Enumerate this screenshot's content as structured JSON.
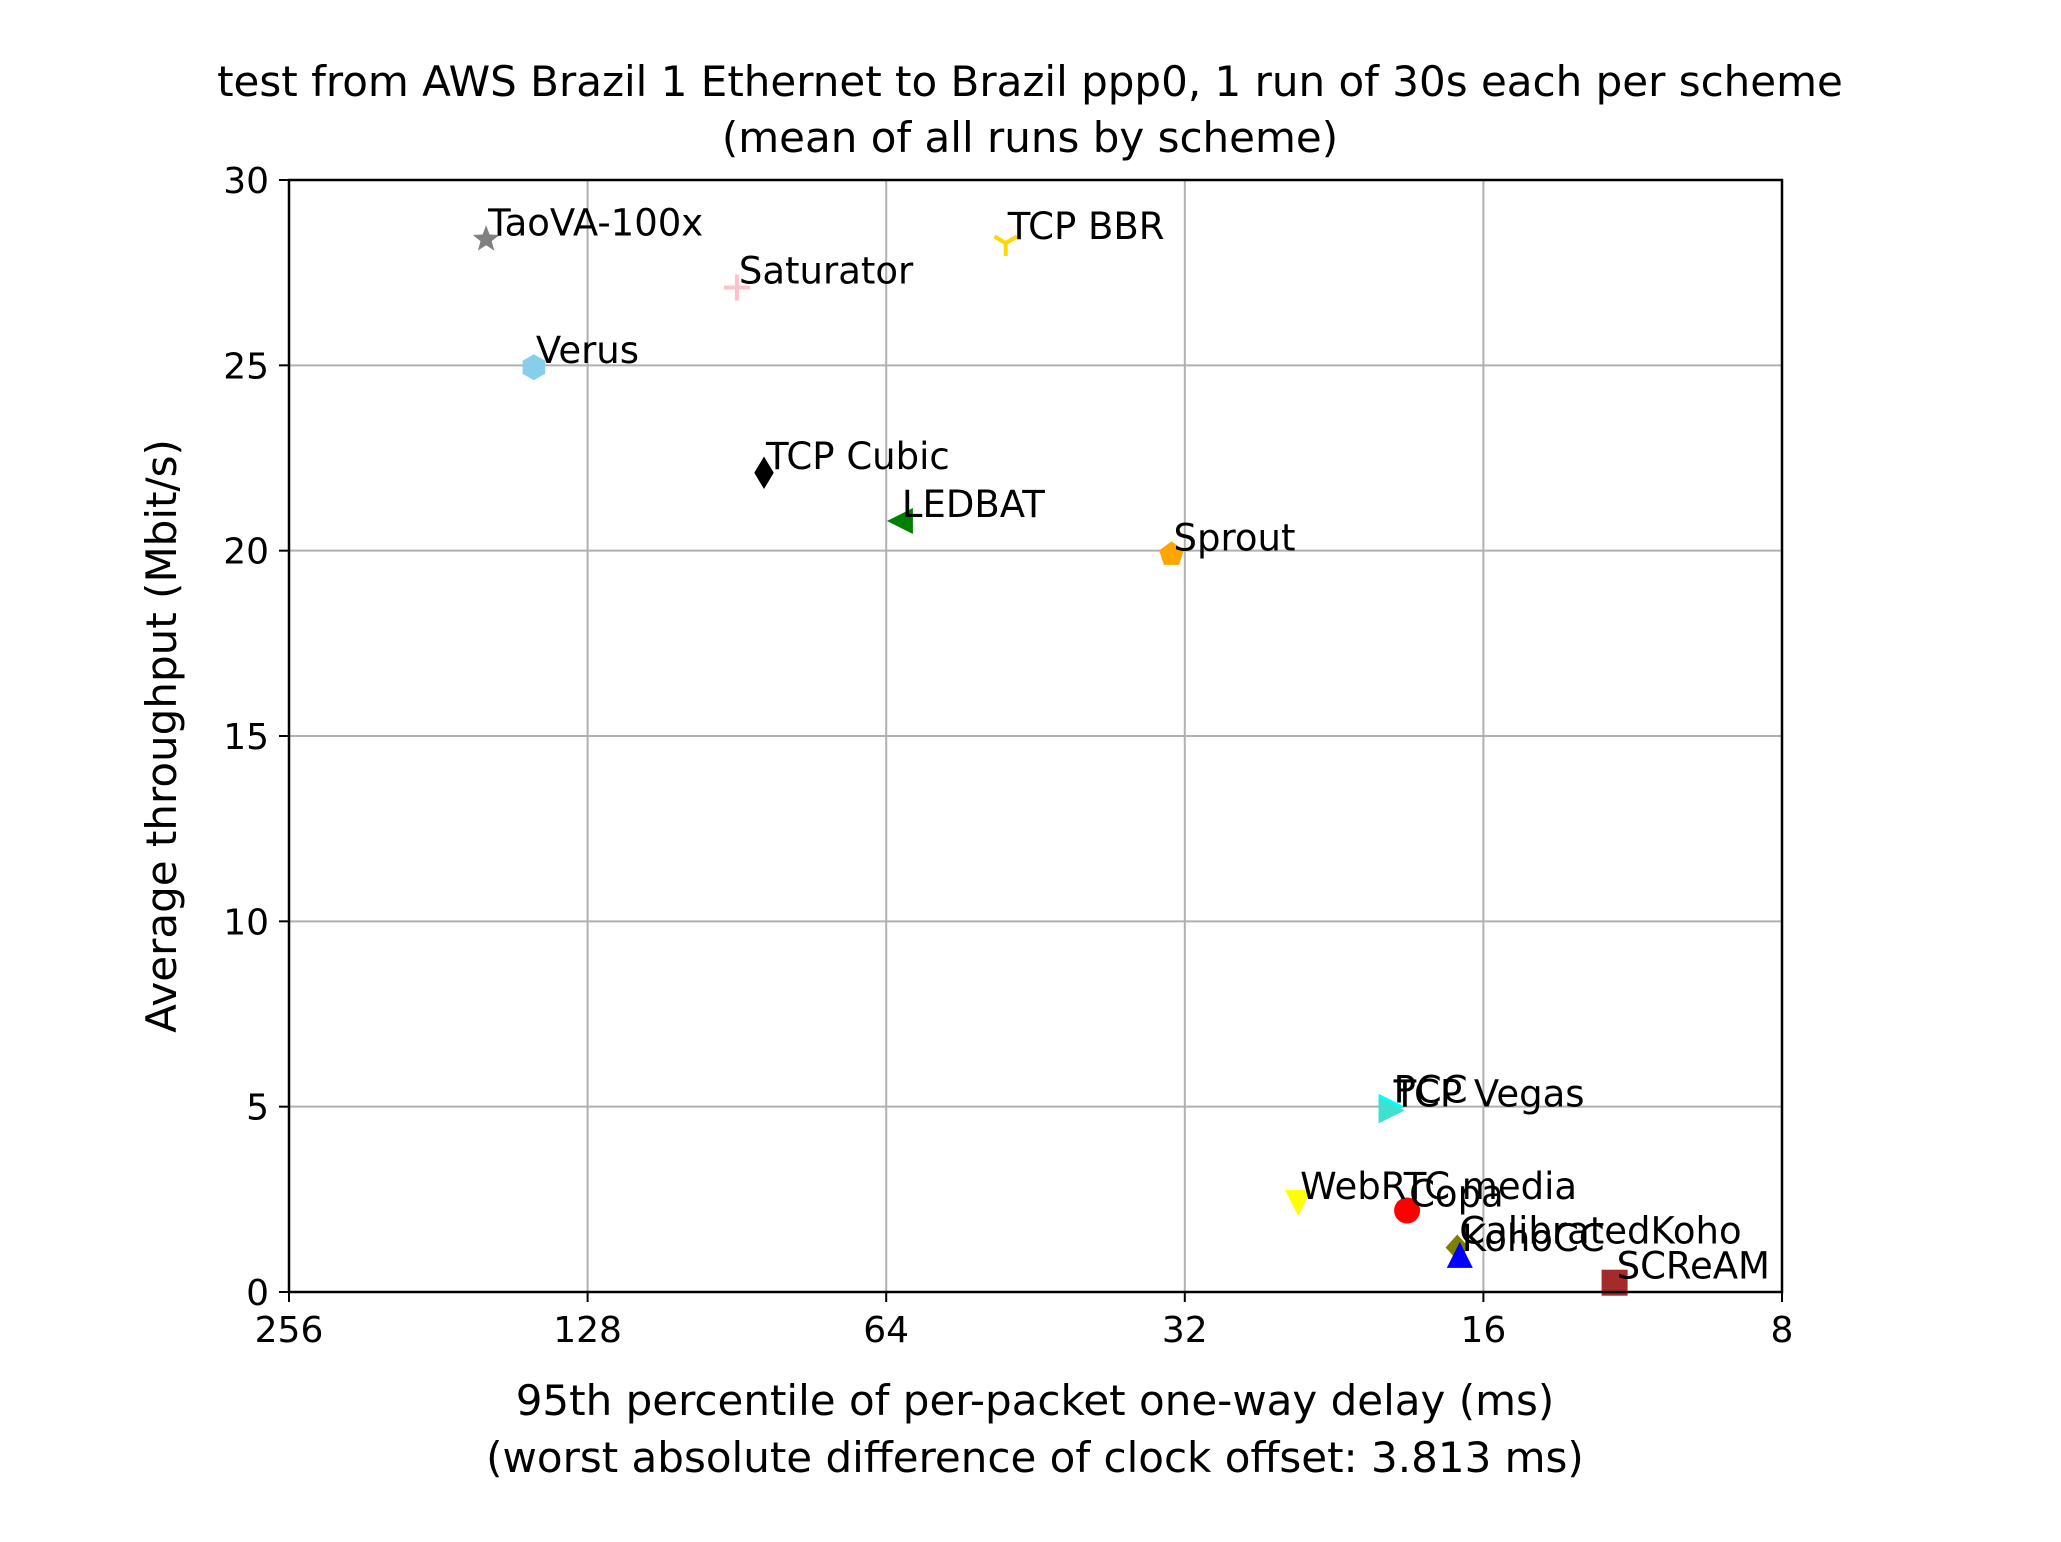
{
  "chart_data": {
    "type": "scatter",
    "title": "test from AWS Brazil 1 Ethernet to Brazil ppp0, 1 run of 30s each per scheme",
    "subtitle": "(mean of all runs by scheme)",
    "xlabel": "95th percentile of per-packet one-way delay (ms)",
    "xlabel_sub": "(worst absolute difference of clock offset: 3.813 ms)",
    "ylabel": "Average throughput (Mbit/s)",
    "x_scale": "log2",
    "x_inverted": true,
    "xlim": [
      256,
      8
    ],
    "ylim": [
      0,
      30
    ],
    "x_ticks": [
      {
        "value": 256,
        "label": "256"
      },
      {
        "value": 128,
        "label": "128"
      },
      {
        "value": 64,
        "label": "64"
      },
      {
        "value": 32,
        "label": "32"
      },
      {
        "value": 16,
        "label": "16"
      },
      {
        "value": 8,
        "label": "8"
      }
    ],
    "y_ticks": [
      {
        "value": 0,
        "label": "0"
      },
      {
        "value": 5,
        "label": "5"
      },
      {
        "value": 10,
        "label": "10"
      },
      {
        "value": 15,
        "label": "15"
      },
      {
        "value": 20,
        "label": "20"
      },
      {
        "value": 25,
        "label": "25"
      },
      {
        "value": 30,
        "label": "30"
      }
    ],
    "grid": true,
    "points": [
      {
        "name": "TaoVA-100x",
        "x": 162,
        "y": 28.4,
        "color": "#808080",
        "marker": "star"
      },
      {
        "name": "Saturator",
        "x": 90.5,
        "y": 27.1,
        "color": "#ffc0cb",
        "marker": "plus"
      },
      {
        "name": "TCP BBR",
        "x": 48.5,
        "y": 28.3,
        "color": "#ffd700",
        "marker": "tri_down"
      },
      {
        "name": "Verus",
        "x": 145,
        "y": 24.95,
        "color": "#87ceeb",
        "marker": "hexagon"
      },
      {
        "name": "TCP Cubic",
        "x": 85,
        "y": 22.1,
        "color": "#000000",
        "marker": "diamond"
      },
      {
        "name": "LEDBAT",
        "x": 62,
        "y": 20.8,
        "color": "#008000",
        "marker": "triangle_left"
      },
      {
        "name": "Sprout",
        "x": 33,
        "y": 19.9,
        "color": "#ffa500",
        "marker": "pentagon"
      },
      {
        "name": "PCC",
        "x": 19.8,
        "y": 5.0,
        "color": "#00ffff",
        "marker": "triangle_right"
      },
      {
        "name": "TCP Vegas",
        "x": 19.8,
        "y": 4.9,
        "color": "#40e0d0",
        "marker": "triangle_right"
      },
      {
        "name": "WebRTC media",
        "x": 24.6,
        "y": 2.4,
        "color": "#ffff00",
        "marker": "triangle_down"
      },
      {
        "name": "Copa",
        "x": 19.1,
        "y": 2.2,
        "color": "#ff0000",
        "marker": "circle"
      },
      {
        "name": "CalibratedKoho",
        "x": 17.0,
        "y": 1.2,
        "color": "#808000",
        "marker": "diamond_thin"
      },
      {
        "name": "KohoCC",
        "x": 16.9,
        "y": 1.0,
        "color": "#0000ff",
        "marker": "triangle_up"
      },
      {
        "name": "SCReAM",
        "x": 11.8,
        "y": 0.25,
        "color": "#a52a2a",
        "marker": "square"
      }
    ]
  }
}
